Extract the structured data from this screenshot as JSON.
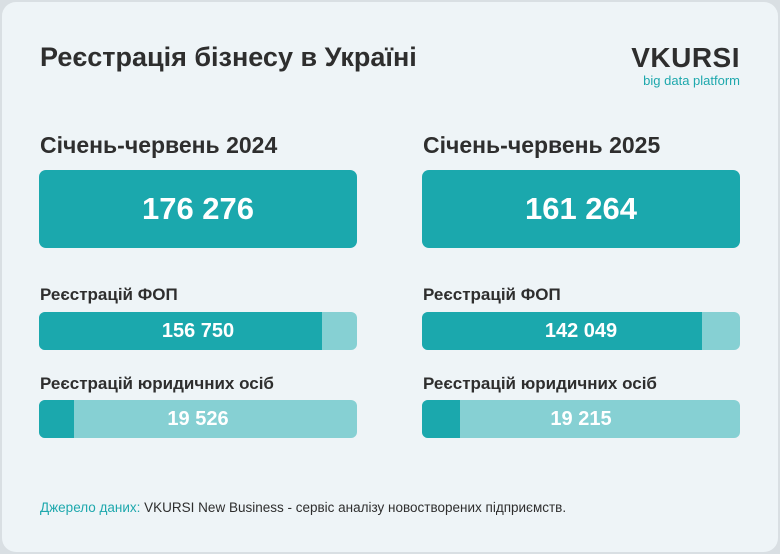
{
  "header": {
    "title": "Реєстрація бізнесу в Україні",
    "logo_main": "VKURSI",
    "logo_sub": "big data platform"
  },
  "colors": {
    "accent": "#1ba8ad",
    "accent_light": "#86d0d3",
    "background": "#eef4f7",
    "text": "#2e2e2e"
  },
  "chart_data": [
    {
      "type": "bar",
      "title": "Січень-червень 2024",
      "total": "176 276",
      "total_value": 176276,
      "bars": [
        {
          "label": "Реєстрацій ФОП",
          "value_text": "156 750",
          "value": 156750
        },
        {
          "label": "Реєстрацій юридичних осіб",
          "value_text": "19 526",
          "value": 19526
        }
      ]
    },
    {
      "type": "bar",
      "title": "Січень-червень 2025",
      "total": "161 264",
      "total_value": 161264,
      "bars": [
        {
          "label": "Реєстрацій ФОП",
          "value_text": "142 049",
          "value": 142049
        },
        {
          "label": "Реєстрацій юридичних осіб",
          "value_text": "19 215",
          "value": 19215
        }
      ]
    }
  ],
  "footer": {
    "source_label": "Джерело даних:",
    "source_text": " VKURSI New Business - сервіс аналізу новостворених підприємств."
  }
}
